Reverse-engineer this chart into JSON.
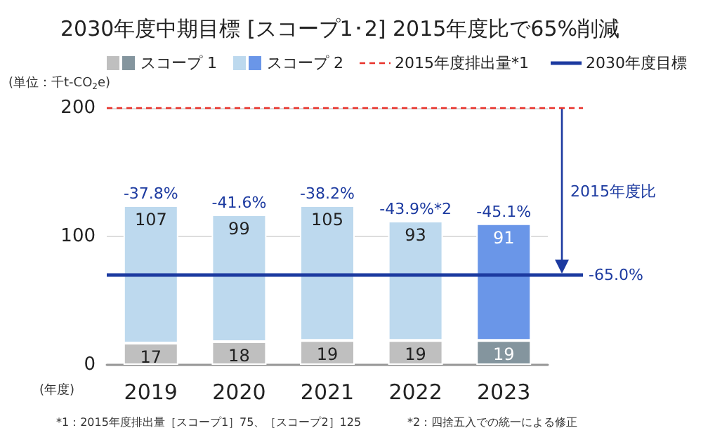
{
  "chart_data": {
    "type": "bar",
    "title": "2030年度中期目標 [スコープ1･2] 2015年度比で65%削減",
    "ylabel": "(単位：千t-CO$_{2}$e)",
    "xlabel": "(年度)",
    "categories": [
      "2019",
      "2020",
      "2021",
      "2022",
      "2023"
    ],
    "series": [
      {
        "name": "スコープ 1",
        "colors": [
          "#bfbfbf",
          "#bfbfbf",
          "#bfbfbf",
          "#bfbfbf",
          "#84959e"
        ],
        "values": [
          17,
          18,
          19,
          19,
          19
        ]
      },
      {
        "name": "スコープ 2",
        "colors": [
          "#bdd9ee",
          "#bdd9ee",
          "#bdd9ee",
          "#bdd9ee",
          "#6a96e8"
        ],
        "values": [
          107,
          99,
          105,
          93,
          91
        ]
      }
    ],
    "stacked": true,
    "data_labels": true,
    "ylim": [
      0,
      200
    ],
    "yticks": [
      0,
      100,
      200
    ],
    "grid": "y",
    "legend": "top",
    "ref_lines": [
      {
        "axis": "y",
        "value": 200,
        "label": "2015年度排出量*1",
        "color": "#e8312a",
        "line_style": "dashed"
      },
      {
        "axis": "y",
        "value": 70,
        "label": "2030年度目標",
        "color": "#1c3aa0",
        "line_style": "solid"
      }
    ],
    "annotations": [
      {
        "text": "-37.8%",
        "x": "2019",
        "y": 124
      },
      {
        "text": "-41.6%",
        "x": "2020",
        "y": 117
      },
      {
        "text": "-38.2%",
        "x": "2021",
        "y": 124
      },
      {
        "text": "-43.9%*2",
        "x": "2022",
        "y": 112
      },
      {
        "text": "-45.1%",
        "x": "2023",
        "y": 110
      },
      "2015年度比",
      "-65.0%",
      "*1：2015年度排出量［スコープ1］75、［スコープ2］125",
      "*2：四捨五入での統一による修正"
    ]
  }
}
